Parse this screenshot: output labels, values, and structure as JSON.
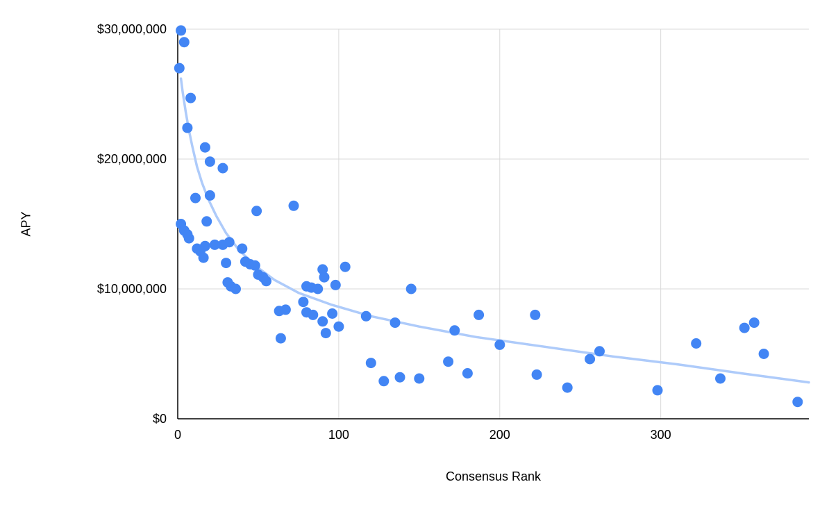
{
  "chart": {
    "y_axis_title": "APY",
    "x_axis_title": "Consensus Rank"
  },
  "chart_data": {
    "type": "scatter",
    "title": "",
    "xlabel": "Consensus Rank",
    "ylabel": "APY",
    "xlim": [
      0,
      392
    ],
    "ylim": [
      0,
      30000000
    ],
    "grid": true,
    "x_ticks": [
      0,
      100,
      200,
      300
    ],
    "x_tick_labels": [
      "0",
      "100",
      "200",
      "300"
    ],
    "y_ticks": [
      0,
      10000000,
      20000000,
      30000000
    ],
    "y_tick_labels": [
      "$0",
      "$10,000,000",
      "$20,000,000",
      "$30,000,000"
    ],
    "point_color": "#4285f4",
    "trend_color": "#aecbfa",
    "grid_color": "#d9d9d9",
    "axis_color": "#000000",
    "points": [
      [
        2,
        29900000
      ],
      [
        4,
        29000000
      ],
      [
        1,
        27000000
      ],
      [
        8,
        24700000
      ],
      [
        6,
        22400000
      ],
      [
        17,
        20900000
      ],
      [
        20,
        19800000
      ],
      [
        28,
        19300000
      ],
      [
        11,
        17000000
      ],
      [
        20,
        17200000
      ],
      [
        49,
        16000000
      ],
      [
        72,
        16400000
      ],
      [
        2,
        15000000
      ],
      [
        4,
        14500000
      ],
      [
        6,
        14200000
      ],
      [
        7,
        13900000
      ],
      [
        18,
        15200000
      ],
      [
        12,
        13100000
      ],
      [
        14,
        12900000
      ],
      [
        16,
        12400000
      ],
      [
        17,
        13300000
      ],
      [
        23,
        13400000
      ],
      [
        28,
        13400000
      ],
      [
        32,
        13600000
      ],
      [
        30,
        12000000
      ],
      [
        31,
        10500000
      ],
      [
        33,
        10200000
      ],
      [
        36,
        10000000
      ],
      [
        40,
        13100000
      ],
      [
        42,
        12100000
      ],
      [
        45,
        11900000
      ],
      [
        48,
        11800000
      ],
      [
        50,
        11100000
      ],
      [
        53,
        10900000
      ],
      [
        55,
        10600000
      ],
      [
        63,
        8300000
      ],
      [
        67,
        8400000
      ],
      [
        64,
        6200000
      ],
      [
        78,
        9000000
      ],
      [
        80,
        10200000
      ],
      [
        83,
        10100000
      ],
      [
        80,
        8200000
      ],
      [
        84,
        8000000
      ],
      [
        87,
        10000000
      ],
      [
        90,
        11500000
      ],
      [
        91,
        10900000
      ],
      [
        90,
        7500000
      ],
      [
        92,
        6600000
      ],
      [
        96,
        8100000
      ],
      [
        98,
        10300000
      ],
      [
        100,
        7100000
      ],
      [
        104,
        11700000
      ],
      [
        117,
        7900000
      ],
      [
        120,
        4300000
      ],
      [
        128,
        2900000
      ],
      [
        135,
        7400000
      ],
      [
        138,
        3200000
      ],
      [
        145,
        10000000
      ],
      [
        150,
        3100000
      ],
      [
        168,
        4400000
      ],
      [
        172,
        6800000
      ],
      [
        180,
        3500000
      ],
      [
        187,
        8000000
      ],
      [
        200,
        5700000
      ],
      [
        222,
        8000000
      ],
      [
        223,
        3400000
      ],
      [
        242,
        2400000
      ],
      [
        256,
        4600000
      ],
      [
        262,
        5200000
      ],
      [
        298,
        2200000
      ],
      [
        322,
        5800000
      ],
      [
        337,
        3100000
      ],
      [
        352,
        7000000
      ],
      [
        358,
        7400000
      ],
      [
        364,
        5000000
      ],
      [
        385,
        1300000
      ]
    ],
    "trendline": {
      "type": "power",
      "samples": [
        [
          2,
          26200000
        ],
        [
          3,
          25200000
        ],
        [
          4,
          24400000
        ],
        [
          5,
          23600000
        ],
        [
          7,
          22200000
        ],
        [
          9,
          21000000
        ],
        [
          12,
          19400000
        ],
        [
          15,
          18200000
        ],
        [
          19,
          16900000
        ],
        [
          24,
          15600000
        ],
        [
          30,
          14300000
        ],
        [
          38,
          13000000
        ],
        [
          48,
          11800000
        ],
        [
          60,
          10700000
        ],
        [
          75,
          9700000
        ],
        [
          95,
          8800000
        ],
        [
          120,
          7900000
        ],
        [
          150,
          7100000
        ],
        [
          185,
          6300000
        ],
        [
          225,
          5600000
        ],
        [
          270,
          4800000
        ],
        [
          310,
          4200000
        ],
        [
          350,
          3500000
        ],
        [
          392,
          2800000
        ]
      ]
    }
  }
}
